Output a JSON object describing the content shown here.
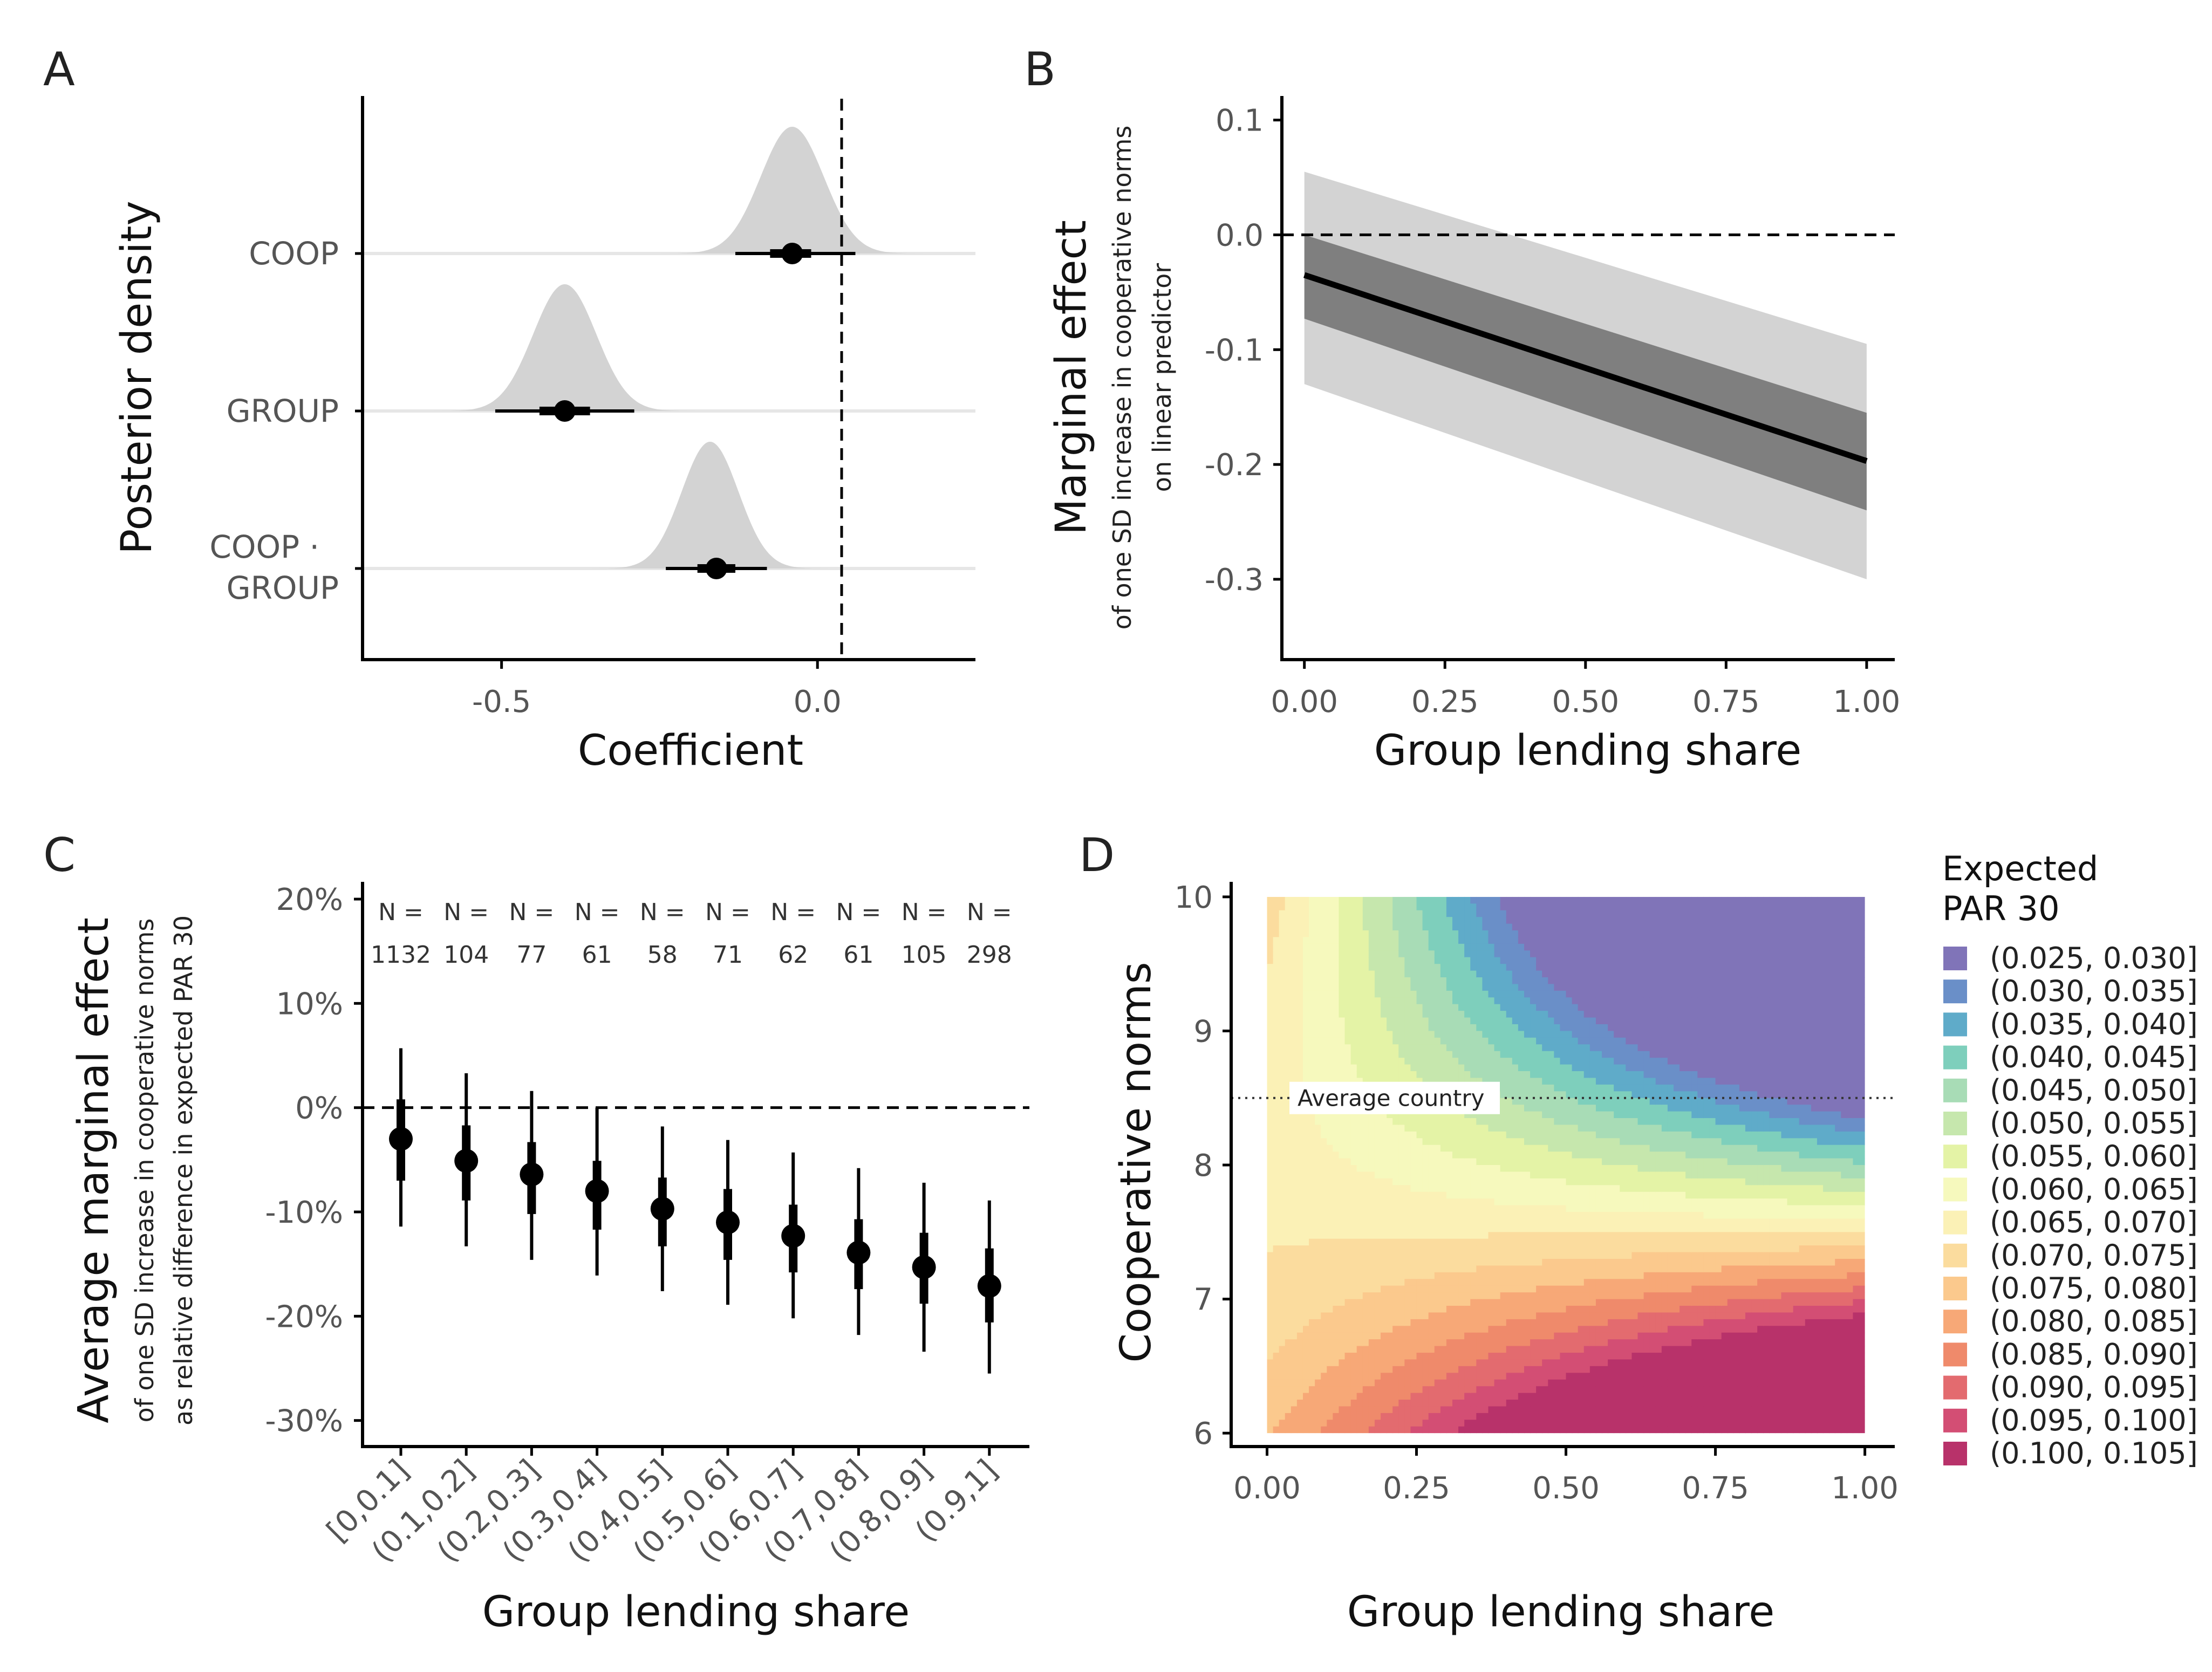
{
  "chart_data": [
    {
      "panel": "A",
      "type": "density-ridge",
      "xlabel": "Coefficient",
      "ylabel": "Posterior density",
      "xlim": [
        -0.72,
        0.25
      ],
      "xticks": [
        -0.5,
        0.0
      ],
      "xtick_labels": [
        "-0.5",
        "0.0"
      ],
      "reference_line_x": 0,
      "rows": [
        {
          "label": "COOP",
          "mean": -0.04,
          "sd": 0.05,
          "point": -0.04,
          "inner": [
            -0.075,
            -0.01
          ],
          "outer": [
            -0.13,
            0.06
          ]
        },
        {
          "label": "GROUP",
          "mean": -0.4,
          "sd": 0.05,
          "point": -0.4,
          "inner": [
            -0.44,
            -0.36
          ],
          "outer": [
            -0.51,
            -0.29
          ]
        },
        {
          "label": "COOP · GROUP",
          "mean": -0.17,
          "sd": 0.045,
          "point": -0.16,
          "inner": [
            -0.19,
            -0.13
          ],
          "outer": [
            -0.24,
            -0.08
          ]
        }
      ]
    },
    {
      "panel": "B",
      "type": "line",
      "xlabel": "Group lending share",
      "ylabel": "Marginal effect",
      "ylabel_sub1": "of one SD increase in cooperative norms",
      "ylabel_sub2": "on linear predictor",
      "xlim": [
        -0.04,
        1.05
      ],
      "ylim": [
        -0.37,
        0.12
      ],
      "xticks": [
        0.0,
        0.25,
        0.5,
        0.75,
        1.0
      ],
      "xtick_labels": [
        "0.00",
        "0.25",
        "0.50",
        "0.75",
        "1.00"
      ],
      "yticks": [
        0.1,
        0.0,
        -0.1,
        -0.2,
        -0.3
      ],
      "ytick_labels": [
        "0.1",
        "0.0",
        "-0.1",
        "-0.2",
        "-0.3"
      ],
      "reference_line_y": 0,
      "x": [
        0.0,
        1.0
      ],
      "y": [
        -0.035,
        -0.197
      ],
      "inner_band_lower": [
        -0.073,
        -0.24
      ],
      "inner_band_upper": [
        0.0,
        -0.155
      ],
      "outer_band_lower": [
        -0.13,
        -0.3
      ],
      "outer_band_upper": [
        0.055,
        -0.095
      ]
    },
    {
      "panel": "C",
      "type": "pointrange",
      "xlabel": "Group lending share",
      "ylabel": "Average marginal effect",
      "ylabel_sub1": "of one SD increase in cooperative norms",
      "ylabel_sub2": "as relative difference in expected PAR 30",
      "ylim": [
        -0.325,
        0.215
      ],
      "yticks": [
        0.2,
        0.1,
        0.0,
        -0.1,
        -0.2,
        -0.3
      ],
      "ytick_labels": [
        "20%",
        "10%",
        "0%",
        "-10%",
        "-20%",
        "-30%"
      ],
      "reference_line_y": 0,
      "n_prefix": "N =",
      "categories": [
        "[0,0.1]",
        "(0.1,0.2]",
        "(0.2,0.3]",
        "(0.3,0.4]",
        "(0.4,0.5]",
        "(0.5,0.6]",
        "(0.6,0.7]",
        "(0.7,0.8]",
        "(0.8,0.9]",
        "(0.9,1]"
      ],
      "n": [
        "1132",
        "104",
        "77",
        "61",
        "58",
        "71",
        "62",
        "61",
        "105",
        "298"
      ],
      "point": [
        -0.03,
        -0.051,
        -0.064,
        -0.08,
        -0.097,
        -0.11,
        -0.123,
        -0.139,
        -0.153,
        -0.171
      ],
      "inner_lower": [
        -0.07,
        -0.089,
        -0.102,
        -0.117,
        -0.133,
        -0.146,
        -0.158,
        -0.174,
        -0.188,
        -0.206
      ],
      "inner_upper": [
        0.008,
        -0.017,
        -0.033,
        -0.051,
        -0.067,
        -0.078,
        -0.093,
        -0.107,
        -0.12,
        -0.135
      ],
      "outer_lower": [
        -0.114,
        -0.133,
        -0.146,
        -0.161,
        -0.176,
        -0.189,
        -0.202,
        -0.218,
        -0.234,
        -0.255
      ],
      "outer_upper": [
        0.057,
        0.033,
        0.016,
        0.0,
        -0.018,
        -0.031,
        -0.043,
        -0.058,
        -0.072,
        -0.089
      ]
    },
    {
      "panel": "D",
      "type": "contour",
      "xlabel": "Group lending share",
      "ylabel": "Cooperative norms",
      "xlim": [
        -0.06,
        1.05
      ],
      "ylim": [
        5.9,
        10.1
      ],
      "xticks": [
        0.0,
        0.25,
        0.5,
        0.75,
        1.0
      ],
      "xtick_labels": [
        "0.00",
        "0.25",
        "0.50",
        "0.75",
        "1.00"
      ],
      "yticks": [
        6,
        7,
        8,
        9,
        10
      ],
      "ytick_labels": [
        "6",
        "7",
        "8",
        "9",
        "10"
      ],
      "x_range": [
        0,
        1
      ],
      "y_range": [
        6,
        10
      ],
      "reference_line_y": 8.5,
      "reference_label": "Average country",
      "legend_title_line1": "Expected",
      "legend_title_line2": "PAR 30",
      "legend": [
        {
          "label": "(0.025, 0.030]",
          "color": "#8074b8"
        },
        {
          "label": "(0.030, 0.035]",
          "color": "#6a8fc8"
        },
        {
          "label": "(0.035, 0.040]",
          "color": "#5fabc9"
        },
        {
          "label": "(0.040, 0.045]",
          "color": "#7ecfbc"
        },
        {
          "label": "(0.045, 0.050]",
          "color": "#a8dcb6"
        },
        {
          "label": "(0.050, 0.055]",
          "color": "#c6e7ad"
        },
        {
          "label": "(0.055, 0.060]",
          "color": "#e4f3a6"
        },
        {
          "label": "(0.060, 0.065]",
          "color": "#f6f9bd"
        },
        {
          "label": "(0.065, 0.070]",
          "color": "#fbf1b6"
        },
        {
          "label": "(0.070, 0.075]",
          "color": "#fbdc9e"
        },
        {
          "label": "(0.075, 0.080]",
          "color": "#fbc98d"
        },
        {
          "label": "(0.080, 0.085]",
          "color": "#f7a877"
        },
        {
          "label": "(0.085, 0.090]",
          "color": "#ef8a6b"
        },
        {
          "label": "(0.090, 0.095]",
          "color": "#e36b6f"
        },
        {
          "label": "(0.095, 0.100]",
          "color": "#d34e74"
        },
        {
          "label": "(0.100, 0.105]",
          "color": "#b8326a"
        }
      ]
    }
  ],
  "panel_letters": [
    "A",
    "B",
    "C",
    "D"
  ]
}
